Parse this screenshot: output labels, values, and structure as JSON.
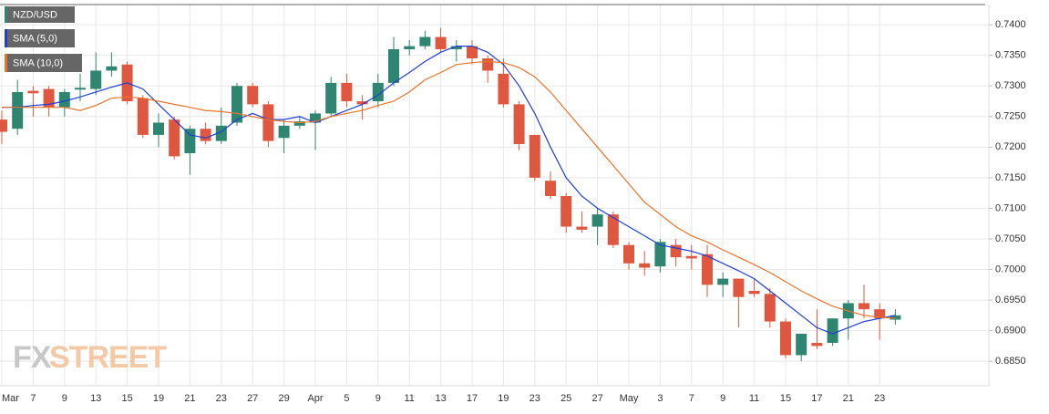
{
  "chart_data": {
    "type": "candlestick",
    "categories": [
      "Mar",
      null,
      "7",
      null,
      "9",
      null,
      "13",
      null,
      "15",
      null,
      "19",
      null,
      "21",
      null,
      "23",
      null,
      "27",
      null,
      "29",
      null,
      "Apr",
      null,
      "5",
      null,
      "9",
      null,
      "11",
      null,
      "13",
      null,
      "17",
      null,
      "19",
      null,
      "23",
      null,
      "25",
      null,
      "27",
      null,
      "May",
      null,
      "3",
      null,
      "7",
      null,
      "9",
      null,
      "11",
      null,
      "15",
      null,
      "17",
      null,
      "21",
      null,
      "23",
      null
    ],
    "candles": {
      "name": "NZD/USD",
      "up_color": "#2e8670",
      "down_color": "#e0573f",
      "open": [
        0.7245,
        0.723,
        0.7292,
        0.7295,
        0.7265,
        0.7294,
        0.7295,
        0.7325,
        0.7335,
        0.728,
        0.722,
        0.7245,
        0.719,
        0.723,
        0.721,
        0.724,
        0.73,
        0.727,
        0.7215,
        0.7235,
        0.724,
        0.7255,
        0.7305,
        0.7275,
        0.7275,
        0.7305,
        0.736,
        0.7365,
        0.738,
        0.736,
        0.7365,
        0.7345,
        0.732,
        0.727,
        0.722,
        0.7145,
        0.712,
        0.707,
        0.707,
        0.709,
        0.704,
        0.701,
        0.7005,
        0.704,
        0.7022,
        0.7025,
        0.6975,
        0.6985,
        0.6965,
        0.696,
        0.6915,
        0.686,
        0.688,
        0.688,
        0.692,
        0.6945,
        0.6935,
        0.6918
      ],
      "high": [
        0.726,
        0.731,
        0.73,
        0.73,
        0.7295,
        0.732,
        0.7355,
        0.7355,
        0.734,
        0.7285,
        0.7255,
        0.725,
        0.7235,
        0.724,
        0.7265,
        0.7305,
        0.7305,
        0.7275,
        0.7245,
        0.725,
        0.726,
        0.7315,
        0.732,
        0.7285,
        0.732,
        0.738,
        0.7375,
        0.739,
        0.7395,
        0.7375,
        0.7375,
        0.735,
        0.7345,
        0.7275,
        0.722,
        0.716,
        0.7125,
        0.7095,
        0.71,
        0.7095,
        0.7045,
        0.703,
        0.705,
        0.705,
        0.704,
        0.704,
        0.6995,
        0.6985,
        0.6985,
        0.697,
        0.692,
        0.6895,
        0.6935,
        0.692,
        0.695,
        0.6975,
        0.6945,
        0.6935
      ],
      "low": [
        0.7205,
        0.722,
        0.725,
        0.725,
        0.725,
        0.7275,
        0.7285,
        0.7315,
        0.727,
        0.7215,
        0.72,
        0.718,
        0.7155,
        0.7205,
        0.7205,
        0.7235,
        0.7265,
        0.72,
        0.719,
        0.723,
        0.7195,
        0.725,
        0.7265,
        0.7245,
        0.7265,
        0.73,
        0.735,
        0.736,
        0.7355,
        0.734,
        0.7335,
        0.7305,
        0.7265,
        0.7195,
        0.7145,
        0.7115,
        0.706,
        0.706,
        0.704,
        0.7035,
        0.7,
        0.699,
        0.6995,
        0.7005,
        0.7,
        0.6955,
        0.6955,
        0.6905,
        0.6955,
        0.6905,
        0.6855,
        0.685,
        0.687,
        0.6875,
        0.6885,
        0.692,
        0.6885,
        0.691
      ],
      "close": [
        0.7225,
        0.729,
        0.7288,
        0.7265,
        0.729,
        0.7297,
        0.7325,
        0.7332,
        0.7275,
        0.722,
        0.724,
        0.7185,
        0.723,
        0.721,
        0.7235,
        0.73,
        0.727,
        0.721,
        0.7235,
        0.7242,
        0.7255,
        0.7305,
        0.7275,
        0.727,
        0.7305,
        0.736,
        0.7365,
        0.738,
        0.736,
        0.7365,
        0.7345,
        0.7325,
        0.727,
        0.7205,
        0.715,
        0.712,
        0.707,
        0.7065,
        0.709,
        0.704,
        0.701,
        0.7003,
        0.7045,
        0.702,
        0.7018,
        0.6975,
        0.6985,
        0.6955,
        0.696,
        0.6915,
        0.686,
        0.6895,
        0.6875,
        0.692,
        0.6945,
        0.6935,
        0.692,
        0.6925
      ]
    },
    "lines": [
      {
        "name": "SMA (5,0)",
        "color": "#1f3fd6",
        "values": [
          0.7265,
          0.7265,
          0.7268,
          0.727,
          0.7275,
          0.7282,
          0.729,
          0.7298,
          0.7305,
          0.7295,
          0.727,
          0.7245,
          0.722,
          0.7215,
          0.7225,
          0.7245,
          0.7255,
          0.7245,
          0.7245,
          0.725,
          0.724,
          0.725,
          0.726,
          0.727,
          0.7285,
          0.7305,
          0.7322,
          0.734,
          0.7355,
          0.7365,
          0.7365,
          0.7355,
          0.7335,
          0.73,
          0.7255,
          0.72,
          0.715,
          0.712,
          0.71,
          0.7085,
          0.707,
          0.7055,
          0.704,
          0.7035,
          0.703,
          0.7022,
          0.701,
          0.6998,
          0.6985,
          0.6965,
          0.6945,
          0.6925,
          0.6905,
          0.6895,
          0.6905,
          0.6915,
          0.692,
          0.6925
        ]
      },
      {
        "name": "SMA (10,0)",
        "color": "#e8742a",
        "values": [
          0.7265,
          0.7265,
          0.7265,
          0.7265,
          0.7265,
          0.726,
          0.7268,
          0.728,
          0.7282,
          0.728,
          0.7275,
          0.727,
          0.7265,
          0.726,
          0.7258,
          0.7255,
          0.725,
          0.7245,
          0.7242,
          0.724,
          0.7242,
          0.725,
          0.7255,
          0.726,
          0.7268,
          0.7275,
          0.729,
          0.731,
          0.7322,
          0.7335,
          0.7338,
          0.734,
          0.7338,
          0.733,
          0.7315,
          0.729,
          0.726,
          0.723,
          0.72,
          0.717,
          0.714,
          0.711,
          0.709,
          0.707,
          0.7055,
          0.7045,
          0.7032,
          0.702,
          0.7008,
          0.6995,
          0.698,
          0.6965,
          0.6952,
          0.694,
          0.6932,
          0.6925,
          0.6922,
          0.692
        ]
      }
    ],
    "ylim": [
      0.681,
      0.7433
    ],
    "yticks": [
      {
        "value": 0.685,
        "label": "0.6850"
      },
      {
        "value": 0.69,
        "label": "0.6900"
      },
      {
        "value": 0.695,
        "label": "0.6950"
      },
      {
        "value": 0.7,
        "label": "0.7000"
      },
      {
        "value": 0.705,
        "label": "0.7050"
      },
      {
        "value": 0.71,
        "label": "0.7100"
      },
      {
        "value": 0.715,
        "label": "0.7150"
      },
      {
        "value": 0.72,
        "label": "0.7200"
      },
      {
        "value": 0.725,
        "label": "0.7250"
      },
      {
        "value": 0.73,
        "label": "0.7300"
      },
      {
        "value": 0.735,
        "label": "0.7350"
      },
      {
        "value": 0.74,
        "label": "0.7400"
      }
    ],
    "grid": true,
    "watermark": [
      "FX",
      "STREET"
    ]
  }
}
